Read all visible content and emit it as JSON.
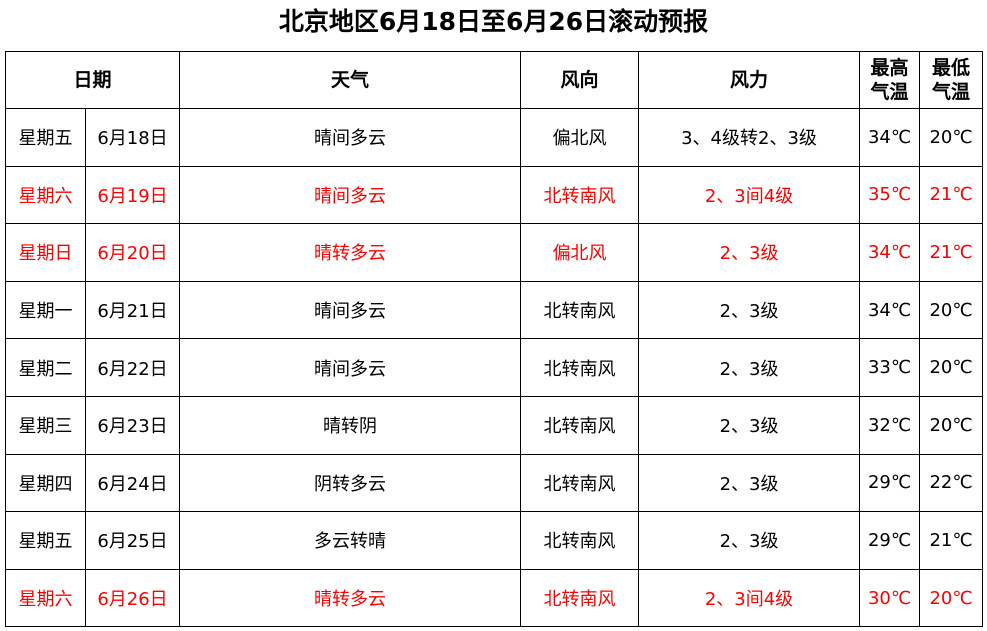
{
  "title": "北京地区6月18日至6月26日滚动预报",
  "header": {
    "date": "日期",
    "weather": "天气",
    "wind_dir": "风向",
    "wind_force": "风力",
    "high_line1": "最高",
    "high_line2": "气温",
    "low_line1": "最低",
    "low_line2": "气温"
  },
  "highlight_color": "#ff0000",
  "rows": [
    {
      "weekday": "星期五",
      "date": "6月18日",
      "weather": "晴间多云",
      "wind_dir": "偏北风",
      "wind_force": "3、4级转2、3级",
      "high": "34℃",
      "low": "20℃",
      "highlight": false
    },
    {
      "weekday": "星期六",
      "date": "6月19日",
      "weather": "晴间多云",
      "wind_dir": "北转南风",
      "wind_force": "2、3间4级",
      "high": "35℃",
      "low": "21℃",
      "highlight": true
    },
    {
      "weekday": "星期日",
      "date": "6月20日",
      "weather": "晴转多云",
      "wind_dir": "偏北风",
      "wind_force": "2、3级",
      "high": "34℃",
      "low": "21℃",
      "highlight": true
    },
    {
      "weekday": "星期一",
      "date": "6月21日",
      "weather": "晴间多云",
      "wind_dir": "北转南风",
      "wind_force": "2、3级",
      "high": "34℃",
      "low": "20℃",
      "highlight": false
    },
    {
      "weekday": "星期二",
      "date": "6月22日",
      "weather": "晴间多云",
      "wind_dir": "北转南风",
      "wind_force": "2、3级",
      "high": "33℃",
      "low": "20℃",
      "highlight": false
    },
    {
      "weekday": "星期三",
      "date": "6月23日",
      "weather": "晴转阴",
      "wind_dir": "北转南风",
      "wind_force": "2、3级",
      "high": "32℃",
      "low": "20℃",
      "highlight": false
    },
    {
      "weekday": "星期四",
      "date": "6月24日",
      "weather": "阴转多云",
      "wind_dir": "北转南风",
      "wind_force": "2、3级",
      "high": "29℃",
      "low": "22℃",
      "highlight": false
    },
    {
      "weekday": "星期五",
      "date": "6月25日",
      "weather": "多云转晴",
      "wind_dir": "北转南风",
      "wind_force": "2、3级",
      "high": "29℃",
      "low": "21℃",
      "highlight": false
    },
    {
      "weekday": "星期六",
      "date": "6月26日",
      "weather": "晴转多云",
      "wind_dir": "北转南风",
      "wind_force": "2、3间4级",
      "high": "30℃",
      "low": "20℃",
      "highlight": true
    }
  ]
}
